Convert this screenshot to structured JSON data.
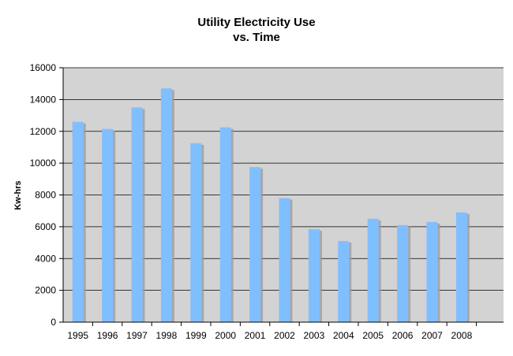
{
  "chart_data": {
    "type": "bar",
    "title": "Utility Electricity Use",
    "subtitle": "vs. Time",
    "xlabel": "",
    "ylabel": "Kw-hrs",
    "categories": [
      "1995",
      "1996",
      "1997",
      "1998",
      "1999",
      "2000",
      "2001",
      "2002",
      "2003",
      "2004",
      "2005",
      "2006",
      "2007",
      "2008"
    ],
    "values": [
      12600,
      12150,
      13500,
      14700,
      11250,
      12250,
      9750,
      7800,
      5850,
      5100,
      6500,
      6100,
      6300,
      6900
    ],
    "ylim": [
      0,
      16000
    ],
    "yticks": [
      "0",
      "2000",
      "4000",
      "6000",
      "8000",
      "10000",
      "12000",
      "14000",
      "16000"
    ],
    "grid": true,
    "legend": "none",
    "colors": {
      "bar": "#80BFFF",
      "bar_shadow": "#9E9E9E",
      "plot_background": "#D3D3D3",
      "gridline": "#000000"
    }
  }
}
